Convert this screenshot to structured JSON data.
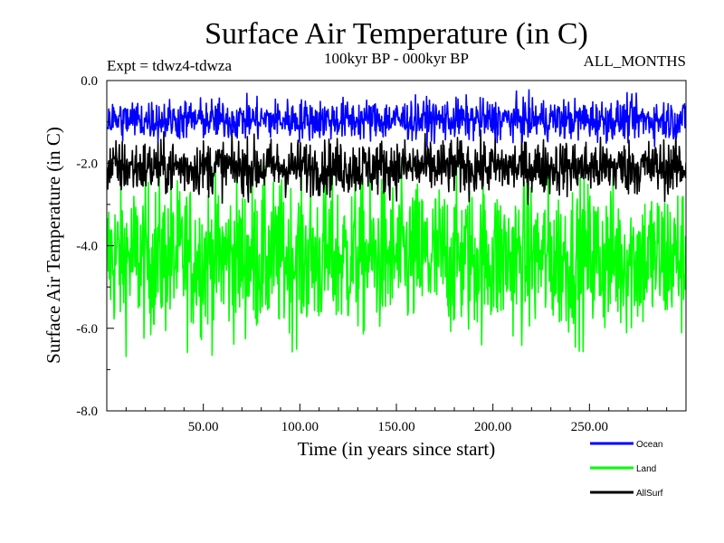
{
  "chart_data": {
    "type": "line",
    "title": "Surface Air Temperature (in C)",
    "subtitle": "100kyr BP - 000kyr BP",
    "experiment": "Expt = tdwz4-tdwza",
    "period": "ALL_MONTHS",
    "xlabel": "Time (in years since start)",
    "ylabel": "Surface Air Temperature (in C)",
    "xlim": [
      0,
      300
    ],
    "ylim": [
      -8.0,
      0.0
    ],
    "x_ticks": [
      50,
      100,
      150,
      200,
      250
    ],
    "x_tick_labels": [
      "50.00",
      "100.00",
      "150.00",
      "200.00",
      "250.00"
    ],
    "y_ticks": [
      0,
      -2,
      -4,
      -6,
      -8
    ],
    "y_tick_labels": [
      "0.0",
      "-2.0",
      "-4.0",
      "-6.0",
      "-8.0"
    ],
    "grid": false,
    "legend_position": "bottom-right",
    "series": [
      {
        "name": "Land",
        "color": "#00ff00",
        "mean": -4.3,
        "min": -7.0,
        "max": -1.8
      },
      {
        "name": "AllSurf",
        "color": "#000000",
        "mean": -2.1,
        "min": -3.1,
        "max": -1.2
      },
      {
        "name": "Ocean",
        "color": "#0000ff",
        "mean": -0.95,
        "min": -1.6,
        "max": -0.2
      }
    ],
    "legend": [
      {
        "name": "Ocean",
        "color": "#0000ff"
      },
      {
        "name": "Land",
        "color": "#00ff00"
      },
      {
        "name": "AllSurf",
        "color": "#000000"
      }
    ]
  }
}
